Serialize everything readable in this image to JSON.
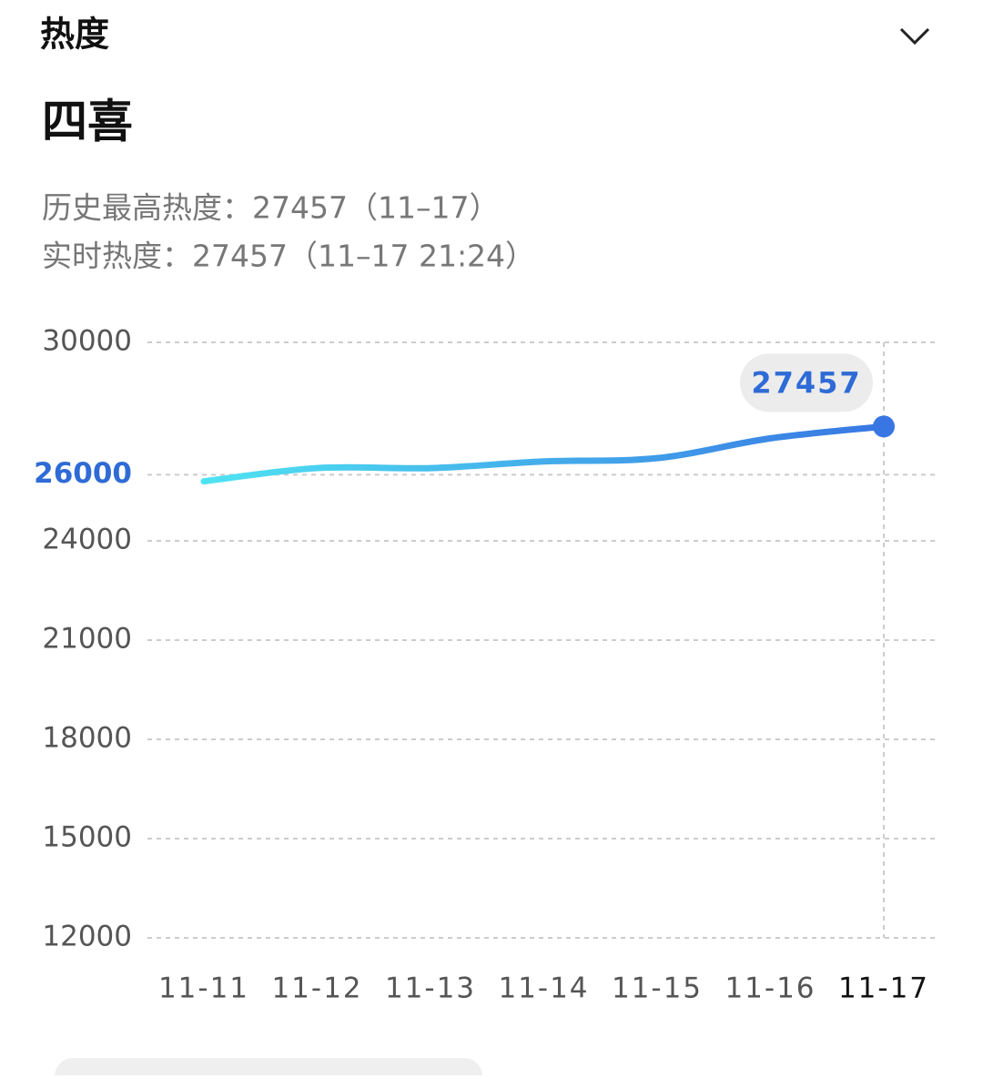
{
  "header": {
    "title": "热度",
    "name": "四喜",
    "peak": "历史最高热度：27457（11–17）",
    "realtime": "实时热度：27457（11–17 21:24）"
  },
  "chart_data": {
    "type": "line",
    "categories": [
      "11-11",
      "11-12",
      "11-13",
      "11-14",
      "11-15",
      "11-16",
      "11-17"
    ],
    "series": [
      {
        "name": "热度",
        "color_start": "#4fe3f2",
        "color_end": "#3877e3",
        "values": [
          25800,
          26200,
          26200,
          26400,
          26500,
          27100,
          27457
        ]
      }
    ],
    "ylim": [
      12000,
      30000
    ],
    "yticks": [
      30000,
      26000,
      24000,
      21000,
      18000,
      15000,
      12000
    ],
    "ytick_colors": [
      "#555",
      "#2f6bd6",
      "#555",
      "#555",
      "#555",
      "#555",
      "#555"
    ],
    "grid": true
  }
}
